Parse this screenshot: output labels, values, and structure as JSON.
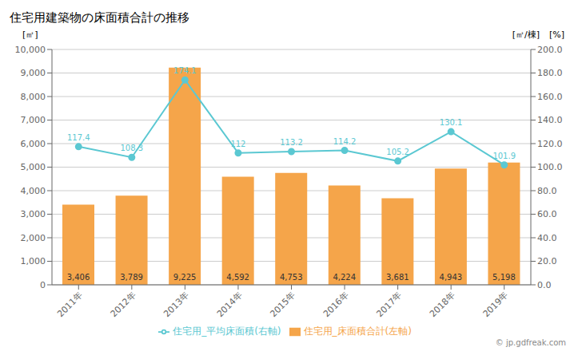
{
  "chart_data": {
    "type": "bar",
    "title": "住宅用建築物の床面積合計の推移",
    "categories": [
      "2011年",
      "2012年",
      "2013年",
      "2014年",
      "2015年",
      "2016年",
      "2017年",
      "2018年",
      "2019年"
    ],
    "series": [
      {
        "name": "住宅用_床面積合計(左軸)",
        "type": "bar",
        "color": "#f5a54a",
        "values": [
          3406,
          3789,
          9225,
          4592,
          4753,
          4224,
          3681,
          4943,
          5198
        ],
        "value_labels": [
          "3,406",
          "3,789",
          "9,225",
          "4,592",
          "4,753",
          "4,224",
          "3,681",
          "4,943",
          "5,198"
        ]
      },
      {
        "name": "住宅用_平均床面積(右軸)",
        "type": "line",
        "axis": "y2",
        "color": "#5bc8d2",
        "marker": "circle",
        "values": [
          117.4,
          108.3,
          174.1,
          112.0,
          113.2,
          114.2,
          105.2,
          130.1,
          101.9
        ]
      }
    ],
    "ylabel": "[㎡]",
    "y2label": "[㎡/棟]",
    "ylim": [
      0,
      10000
    ],
    "yticks": [
      0,
      {
        "value": 1000,
        "label": "1,000"
      },
      {
        "value": 2000,
        "label": "2,000"
      },
      {
        "value": 3000,
        "label": "3,000"
      },
      {
        "value": 4000,
        "label": "4,000"
      },
      {
        "value": 5000,
        "label": "5,000"
      },
      {
        "value": 6000,
        "label": "6,000"
      },
      {
        "value": 7000,
        "label": "7,000"
      },
      {
        "value": 8000,
        "label": "8,000"
      },
      {
        "value": 9000,
        "label": "9,000"
      },
      {
        "value": 10000,
        "label": "10,000"
      }
    ],
    "y2lim": [
      0,
      200
    ],
    "y2ticks": [
      {
        "value": 0,
        "label": "0.0"
      },
      {
        "value": 20,
        "label": "20.0"
      },
      {
        "value": 40,
        "label": "40.0"
      },
      {
        "value": 60,
        "label": "60.0"
      },
      {
        "value": 80,
        "label": "80.0"
      },
      {
        "value": 100,
        "label": "100.0"
      },
      {
        "value": 120,
        "label": "120.0"
      },
      {
        "value": 140,
        "label": "140.0"
      },
      {
        "value": 160,
        "label": "160.0"
      },
      {
        "value": 180,
        "label": "180.0"
      },
      {
        "value": 200,
        "label": "200.0"
      }
    ],
    "grid": true,
    "data_labels": true,
    "legend": "bottom",
    "annotations": [
      "[%]",
      "© jp.gdfreak.com"
    ]
  }
}
